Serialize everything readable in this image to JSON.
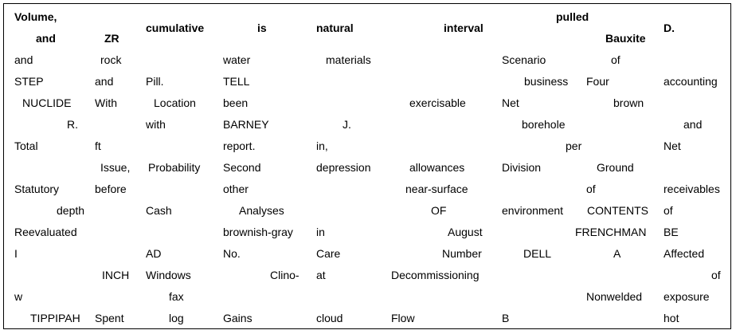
{
  "table": {
    "header": [
      {
        "text": "Volume,"
      },
      {
        "text": "and"
      },
      {
        "text": "ZR"
      },
      {
        "text": "cumulative"
      },
      {
        "text": "is"
      },
      {
        "text": "natural"
      },
      {
        "text": "interval"
      },
      {
        "text": "pulled"
      },
      {
        "text": "Bauxite"
      },
      {
        "text": "D."
      }
    ],
    "rows": [
      [
        "and",
        "rock",
        "water",
        "materials",
        "Scenario",
        "of"
      ],
      [
        "STEP",
        "and",
        "Pill.",
        "TELL",
        "business",
        "Four",
        "accounting"
      ],
      [
        "NUCLIDE",
        "With",
        "Location",
        "been",
        "exercisable",
        "Net",
        "brown"
      ],
      [
        "R.",
        "with",
        "BARNEY",
        "J.",
        "borehole",
        "and"
      ],
      [
        "Total",
        "ft",
        "report.",
        "in,",
        "per",
        "Net"
      ],
      [
        "Issue,",
        "Probability",
        "Second",
        "depression",
        "allowances",
        "Division",
        "Ground"
      ],
      [
        "Statutory",
        "before",
        "other",
        "near-surface",
        "of",
        "receivables"
      ],
      [
        "depth",
        "Cash",
        "Analyses",
        "OF",
        "environment",
        "CONTENTS",
        "of"
      ],
      [
        "Reevaluated",
        "brownish-gray",
        "in",
        "August",
        "FRENCHMAN",
        "BE"
      ],
      [
        "I",
        "AD",
        "No.",
        "Care",
        "Number",
        "DELL",
        "A",
        "Affected"
      ],
      [
        "INCH",
        "Windows",
        "Clino-",
        "at",
        "Decommissioning",
        "of"
      ],
      [
        "w",
        "fax",
        "Nonwelded",
        "exposure"
      ],
      [
        "TIPPIPAH",
        "Spent",
        "log",
        "Gains",
        "cloud",
        "Flow",
        "B",
        "hot"
      ]
    ]
  }
}
